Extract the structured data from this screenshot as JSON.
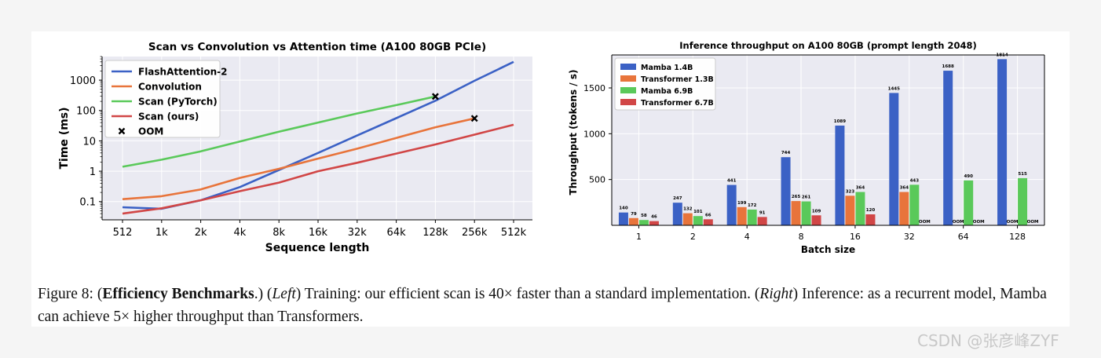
{
  "chart_data": [
    {
      "type": "line",
      "title": "Scan vs Convolution vs Attention time (A100 80GB PCIe)",
      "xlabel": "Sequence length",
      "ylabel": "Time (ms)",
      "categories": [
        "512",
        "1k",
        "2k",
        "4k",
        "8k",
        "16k",
        "32k",
        "64k",
        "128k",
        "256k",
        "512k"
      ],
      "y_scale": "log",
      "yticks": [
        {
          "value": 0.1,
          "label": "0.1"
        },
        {
          "value": 1,
          "label": "1"
        },
        {
          "value": 10,
          "label": "10"
        },
        {
          "value": 100,
          "label": "100"
        },
        {
          "value": 1000,
          "label": "1000"
        }
      ],
      "ylim": [
        0.025,
        6000
      ],
      "grid": true,
      "legend_position": "top-left",
      "series": [
        {
          "name": "FlashAttention-2",
          "color": "#3b61c5",
          "values": [
            0.065,
            0.058,
            0.11,
            0.3,
            1.1,
            4.0,
            15,
            56,
            210,
            950,
            4000
          ]
        },
        {
          "name": "Convolution",
          "color": "#e8743b",
          "values": [
            0.12,
            0.15,
            0.25,
            0.6,
            1.2,
            2.6,
            5.5,
            12.5,
            28,
            55,
            null
          ]
        },
        {
          "name": "Scan (PyTorch)",
          "color": "#5ac95a",
          "values": [
            1.4,
            2.4,
            4.5,
            9.5,
            20,
            40,
            80,
            150,
            290,
            null,
            null
          ]
        },
        {
          "name": "Scan (ours)",
          "color": "#d14646",
          "values": [
            0.04,
            0.06,
            0.11,
            0.22,
            0.42,
            1.0,
            1.9,
            3.8,
            7.6,
            16,
            34
          ]
        }
      ],
      "oom": {
        "label": "OOM",
        "points": [
          {
            "series": "Scan (PyTorch)",
            "category": "128k",
            "value": 290
          },
          {
            "series": "Convolution",
            "category": "256k",
            "value": 55
          }
        ]
      }
    },
    {
      "type": "bar",
      "title": "Inference throughput on A100 80GB (prompt length 2048)",
      "xlabel": "Batch size",
      "ylabel": "Throughput (tokens / s)",
      "categories": [
        "1",
        "2",
        "4",
        "8",
        "16",
        "32",
        "64",
        "128"
      ],
      "yticks": [
        500,
        1000,
        1500
      ],
      "ylim": [
        0,
        1860
      ],
      "grid": true,
      "legend_position": "top-left",
      "oom_label": "OOM",
      "series": [
        {
          "name": "Mamba 1.4B",
          "color": "#3b61c5",
          "values": [
            140,
            247,
            441,
            744,
            1089,
            1445,
            1688,
            1814
          ]
        },
        {
          "name": "Transformer 1.3B",
          "color": "#e8743b",
          "values": [
            79,
            132,
            199,
            265,
            323,
            364,
            null,
            null
          ]
        },
        {
          "name": "Mamba 6.9B",
          "color": "#5ac95a",
          "values": [
            58,
            101,
            172,
            261,
            364,
            443,
            490,
            515
          ]
        },
        {
          "name": "Transformer 6.7B",
          "color": "#d14646",
          "values": [
            46,
            66,
            91,
            109,
            120,
            null,
            null,
            null
          ]
        }
      ]
    }
  ],
  "caption": {
    "figure_label": "Figure 8: (",
    "bold_title": "Efficiency Benchmarks",
    "after_title": ".) (",
    "left_label": "Left",
    "left_text": ") Training: our efficient scan is 40× faster than a standard implementation. (",
    "right_label": "Right",
    "right_text": ") Inference: as a recurrent model, Mamba can achieve 5× higher throughput than Transformers."
  },
  "watermark": "CSDN @张彦峰ZYF"
}
